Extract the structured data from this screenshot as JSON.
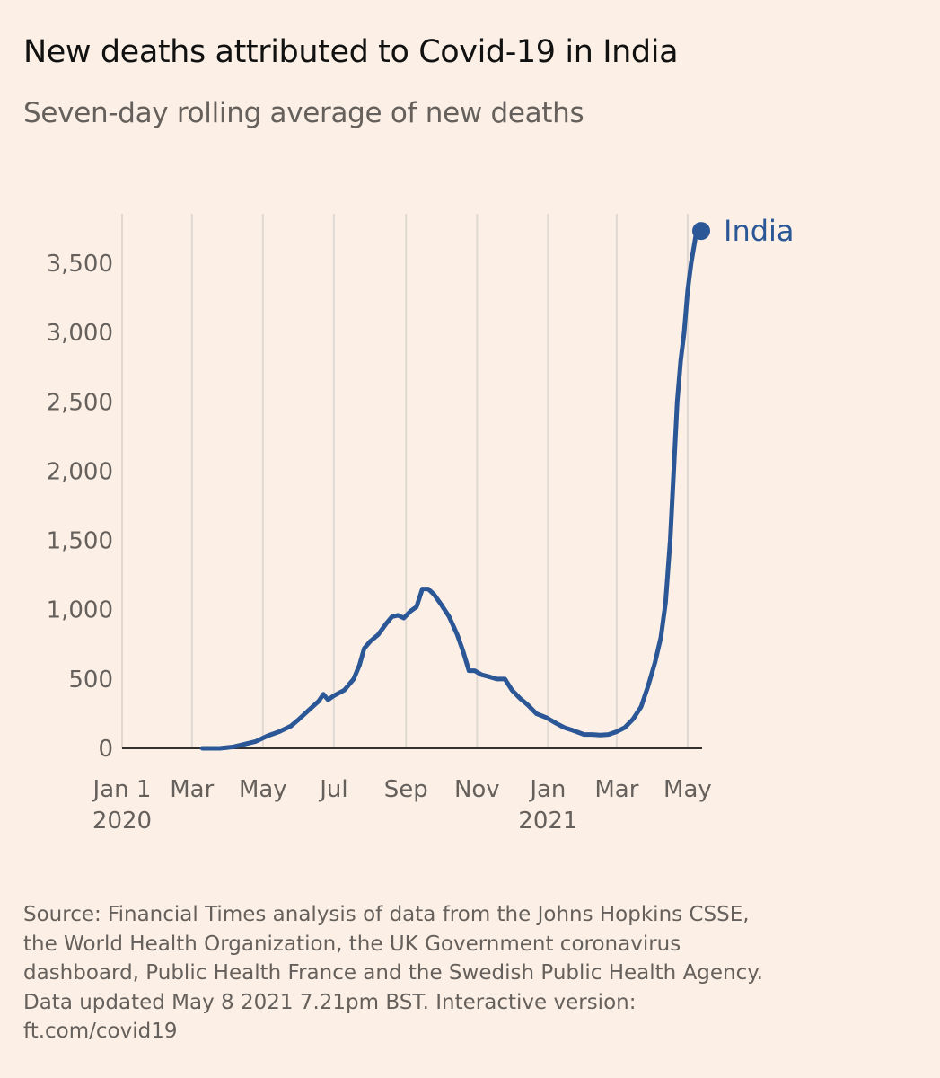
{
  "title": "New deaths attributed to Covid-19 in India",
  "subtitle": "Seven-day rolling average of new deaths",
  "source_lines": [
    "Source: Financial Times analysis of data from the Johns Hopkins CSSE,",
    "the World Health Organization, the UK Government coronavirus",
    "dashboard, Public Health France and the Swedish Public Health Agency.",
    "Data updated May 8 2021 7.21pm BST. Interactive version:",
    "ft.com/covid19"
  ],
  "colors": {
    "background": "#fcf0e6",
    "series": "#2b5797",
    "grid": "#e0d8d1",
    "axis": "#66605c",
    "title": "#111111"
  },
  "chart_data": {
    "type": "line",
    "title": "New deaths attributed to Covid-19 in India",
    "subtitle": "Seven-day rolling average of new deaths",
    "xlabel": "",
    "ylabel": "",
    "ylim": [
      0,
      3800
    ],
    "xlim": [
      "2020-01-01",
      "2021-05-08"
    ],
    "yticks": [
      0,
      500,
      1000,
      1500,
      2000,
      2500,
      3000,
      3500
    ],
    "ytick_labels": [
      "0",
      "500",
      "1,000",
      "1,500",
      "2,000",
      "2,500",
      "3,000",
      "3,500"
    ],
    "xticks": [
      {
        "date": "2020-01-01",
        "label": "Jan 1",
        "sublabel": "2020"
      },
      {
        "date": "2020-03-01",
        "label": "Mar",
        "sublabel": ""
      },
      {
        "date": "2020-05-01",
        "label": "May",
        "sublabel": ""
      },
      {
        "date": "2020-07-01",
        "label": "Jul",
        "sublabel": ""
      },
      {
        "date": "2020-09-01",
        "label": "Sep",
        "sublabel": ""
      },
      {
        "date": "2020-11-01",
        "label": "Nov",
        "sublabel": ""
      },
      {
        "date": "2021-01-01",
        "label": "Jan",
        "sublabel": "2021"
      },
      {
        "date": "2021-03-01",
        "label": "Mar",
        "sublabel": ""
      },
      {
        "date": "2021-05-01",
        "label": "May",
        "sublabel": ""
      }
    ],
    "grid": "vertical",
    "legend": "end-of-line label",
    "series": [
      {
        "name": "India",
        "color": "#2b5797",
        "x": [
          "2020-03-10",
          "2020-03-25",
          "2020-04-05",
          "2020-04-15",
          "2020-04-25",
          "2020-05-05",
          "2020-05-15",
          "2020-05-25",
          "2020-06-01",
          "2020-06-10",
          "2020-06-18",
          "2020-06-22",
          "2020-06-26",
          "2020-07-01",
          "2020-07-10",
          "2020-07-18",
          "2020-07-23",
          "2020-07-27",
          "2020-08-01",
          "2020-08-08",
          "2020-08-15",
          "2020-08-20",
          "2020-08-25",
          "2020-08-30",
          "2020-09-05",
          "2020-09-10",
          "2020-09-15",
          "2020-09-20",
          "2020-09-25",
          "2020-10-01",
          "2020-10-08",
          "2020-10-15",
          "2020-10-20",
          "2020-10-25",
          "2020-10-30",
          "2020-11-05",
          "2020-11-10",
          "2020-11-18",
          "2020-11-25",
          "2020-12-01",
          "2020-12-08",
          "2020-12-15",
          "2020-12-22",
          "2020-12-31",
          "2021-01-08",
          "2021-01-15",
          "2021-01-22",
          "2021-02-01",
          "2021-02-08",
          "2021-02-15",
          "2021-02-22",
          "2021-03-01",
          "2021-03-08",
          "2021-03-15",
          "2021-03-22",
          "2021-03-28",
          "2021-04-03",
          "2021-04-08",
          "2021-04-12",
          "2021-04-16",
          "2021-04-19",
          "2021-04-22",
          "2021-04-25",
          "2021-04-28",
          "2021-05-01",
          "2021-05-04",
          "2021-05-08"
        ],
        "y": [
          0,
          0,
          10,
          30,
          50,
          90,
          120,
          160,
          210,
          280,
          340,
          390,
          350,
          380,
          420,
          500,
          600,
          720,
          770,
          820,
          900,
          950,
          960,
          940,
          990,
          1020,
          1150,
          1150,
          1110,
          1040,
          950,
          820,
          700,
          560,
          560,
          530,
          520,
          500,
          500,
          420,
          360,
          310,
          250,
          220,
          180,
          150,
          130,
          100,
          100,
          95,
          100,
          120,
          150,
          210,
          300,
          450,
          620,
          800,
          1050,
          1500,
          2000,
          2500,
          2800,
          3000,
          3300,
          3500,
          3700
        ]
      }
    ]
  }
}
